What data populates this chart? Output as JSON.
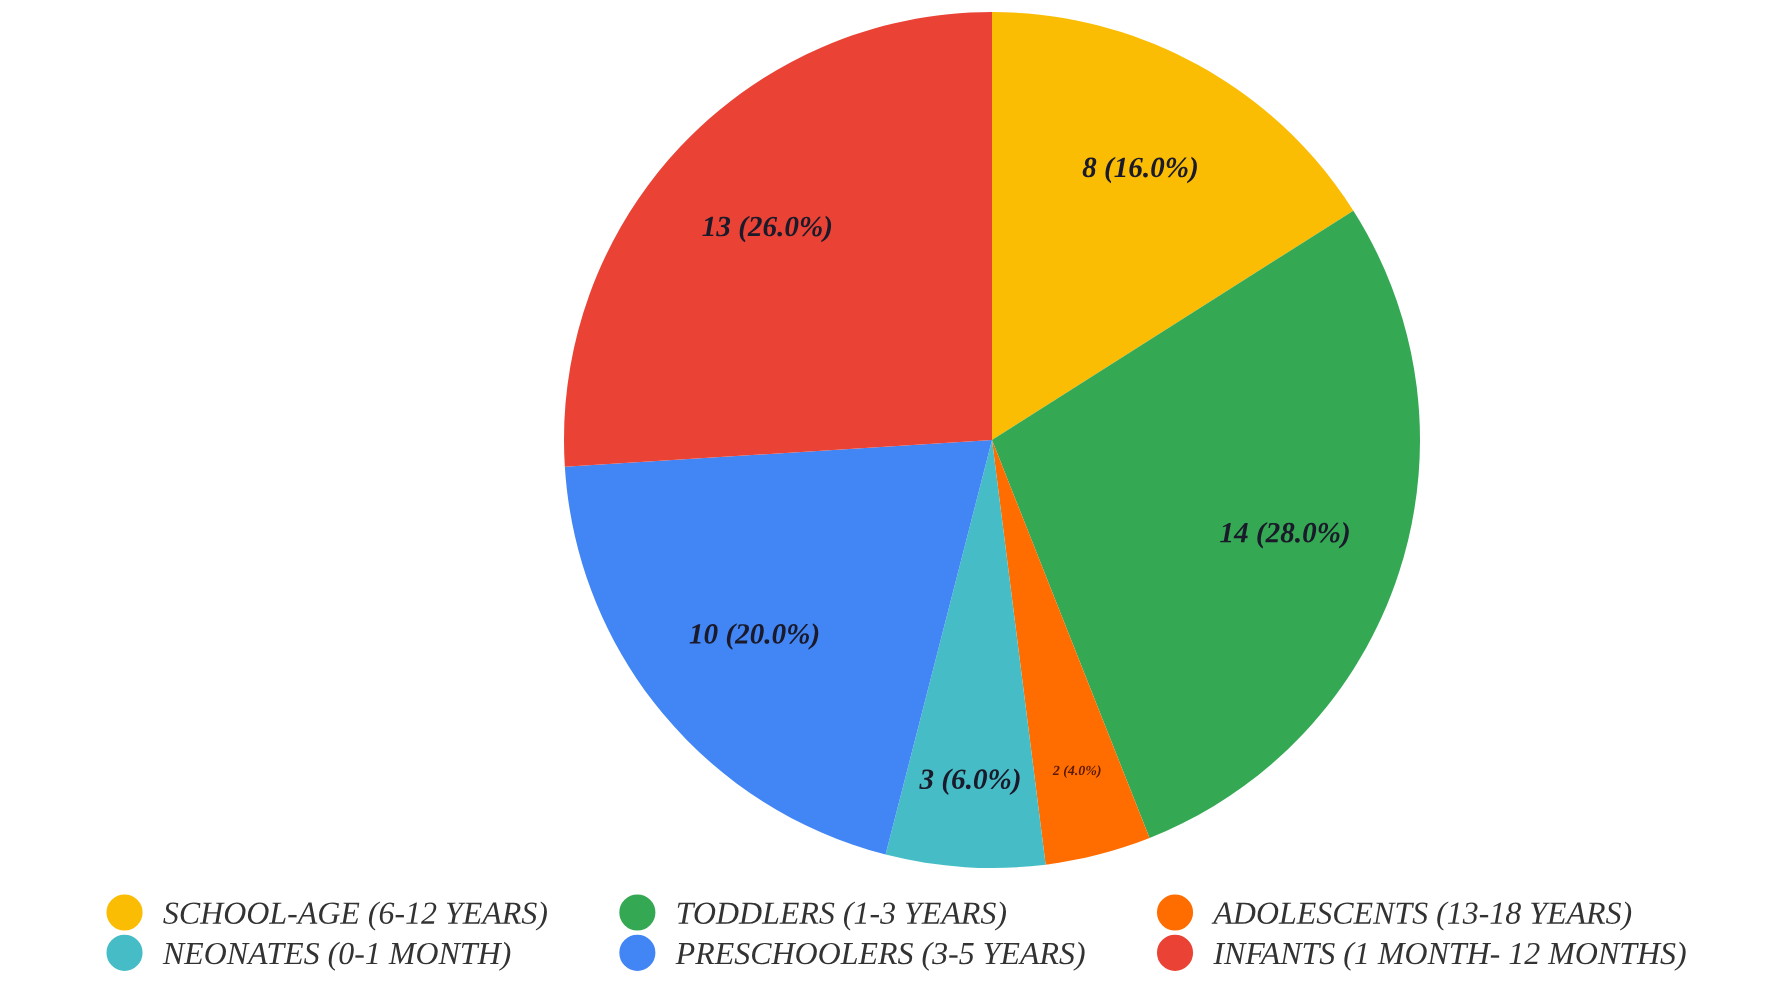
{
  "chart_data": {
    "type": "pie",
    "categories": [
      "SCHOOL-AGE (6-12 YEARS)",
      "TODDLERS (1-3 YEARS)",
      "ADOLESCENTS (13-18 YEARS)",
      "NEONATES (0-1 MONTH)",
      "PRESCHOOLERS (3-5 YEARS)",
      "INFANTS (1 MONTH- 12 MONTHS)"
    ],
    "values": [
      8,
      14,
      2,
      3,
      10,
      13
    ],
    "colors": [
      "#fbbc04",
      "#34a853",
      "#ff6d01",
      "#46bdc6",
      "#4285f4",
      "#ea4335"
    ],
    "value_labels": [
      "8 (16.0%)",
      "14 (28.0%)",
      "2 (4.0%)",
      "3 (6.0%)",
      "10 (20.0%)",
      "13 (26.0%)"
    ],
    "legend": "bottom"
  }
}
